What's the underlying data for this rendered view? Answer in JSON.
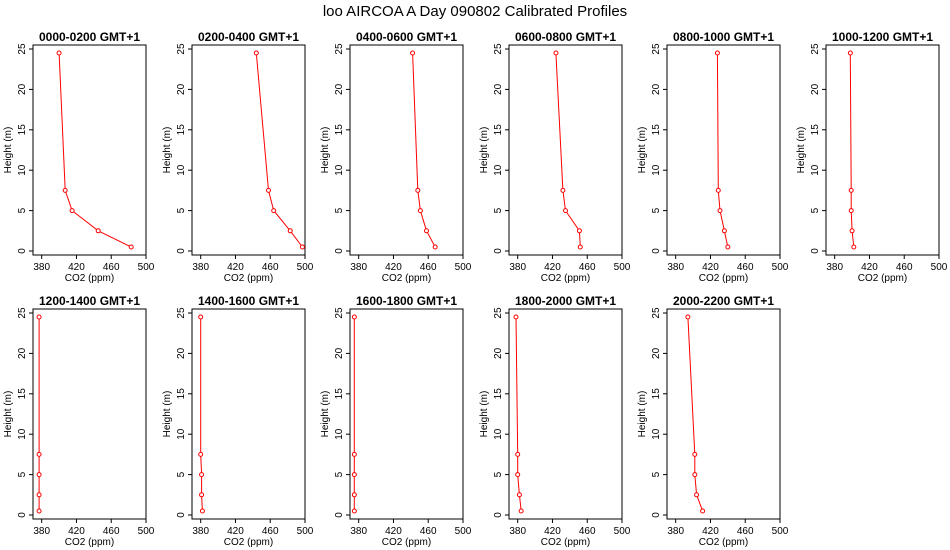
{
  "figure": {
    "title": "loo AIRCOA A  Day 090802  Calibrated Profiles",
    "colors": {
      "line": "#ff0000",
      "axis": "#000000",
      "background": "#ffffff"
    }
  },
  "chart_data": [
    {
      "type": "line",
      "title": "0000-0200 GMT+1",
      "xlabel": "CO2 (ppm)",
      "ylabel": "Height (m)",
      "xlim": [
        370,
        500
      ],
      "ylim": [
        0,
        25
      ],
      "x_ticks": [
        380,
        420,
        460,
        500
      ],
      "y_ticks": [
        0,
        5,
        10,
        15,
        20,
        25
      ],
      "x": [
        483,
        445,
        415,
        407,
        400
      ],
      "y": [
        0.5,
        2.5,
        5,
        7.5,
        24.5
      ]
    },
    {
      "type": "line",
      "title": "0200-0400 GMT+1",
      "xlabel": "CO2 (ppm)",
      "ylabel": "Height (m)",
      "xlim": [
        370,
        500
      ],
      "ylim": [
        0,
        25
      ],
      "x_ticks": [
        380,
        420,
        460,
        500
      ],
      "y_ticks": [
        0,
        5,
        10,
        15,
        20,
        25
      ],
      "x": [
        497,
        483,
        464,
        458,
        444
      ],
      "y": [
        0.5,
        2.5,
        5,
        7.5,
        24.5
      ]
    },
    {
      "type": "line",
      "title": "0400-0600 GMT+1",
      "xlabel": "CO2 (ppm)",
      "ylabel": "Height (m)",
      "xlim": [
        370,
        500
      ],
      "ylim": [
        0,
        25
      ],
      "x_ticks": [
        380,
        420,
        460,
        500
      ],
      "y_ticks": [
        0,
        5,
        10,
        15,
        20,
        25
      ],
      "x": [
        468,
        458,
        451,
        448,
        442
      ],
      "y": [
        0.5,
        2.5,
        5,
        7.5,
        24.5
      ]
    },
    {
      "type": "line",
      "title": "0600-0800 GMT+1",
      "xlabel": "CO2 (ppm)",
      "ylabel": "Height (m)",
      "xlim": [
        370,
        500
      ],
      "ylim": [
        0,
        25
      ],
      "x_ticks": [
        380,
        420,
        460,
        500
      ],
      "y_ticks": [
        0,
        5,
        10,
        15,
        20,
        25
      ],
      "x": [
        452,
        451,
        435,
        432,
        424
      ],
      "y": [
        0.5,
        2.5,
        5,
        7.5,
        24.5
      ]
    },
    {
      "type": "line",
      "title": "0800-1000 GMT+1",
      "xlabel": "CO2 (ppm)",
      "ylabel": "Height (m)",
      "xlim": [
        370,
        500
      ],
      "ylim": [
        0,
        25
      ],
      "x_ticks": [
        380,
        420,
        460,
        500
      ],
      "y_ticks": [
        0,
        5,
        10,
        15,
        20,
        25
      ],
      "x": [
        440,
        436,
        431,
        429,
        428
      ],
      "y": [
        0.5,
        2.5,
        5,
        7.5,
        24.5
      ]
    },
    {
      "type": "line",
      "title": "1000-1200 GMT+1",
      "xlabel": "CO2 (ppm)",
      "ylabel": "Height (m)",
      "xlim": [
        370,
        500
      ],
      "ylim": [
        0,
        25
      ],
      "x_ticks": [
        380,
        420,
        460,
        500
      ],
      "y_ticks": [
        0,
        5,
        10,
        15,
        20,
        25
      ],
      "x": [
        402,
        400,
        399,
        399,
        398
      ],
      "y": [
        0.5,
        2.5,
        5,
        7.5,
        24.5
      ]
    },
    {
      "type": "line",
      "title": "1200-1400 GMT+1",
      "xlabel": "CO2 (ppm)",
      "ylabel": "Height (m)",
      "xlim": [
        370,
        500
      ],
      "ylim": [
        0,
        25
      ],
      "x_ticks": [
        380,
        420,
        460,
        500
      ],
      "y_ticks": [
        0,
        5,
        10,
        15,
        20,
        25
      ],
      "x": [
        377,
        377,
        377,
        377,
        377
      ],
      "y": [
        0.5,
        2.5,
        5,
        7.5,
        24.5
      ]
    },
    {
      "type": "line",
      "title": "1400-1600 GMT+1",
      "xlabel": "CO2 (ppm)",
      "ylabel": "Height (m)",
      "xlim": [
        370,
        500
      ],
      "ylim": [
        0,
        25
      ],
      "x_ticks": [
        380,
        420,
        460,
        500
      ],
      "y_ticks": [
        0,
        5,
        10,
        15,
        20,
        25
      ],
      "x": [
        382,
        381,
        381,
        380,
        380
      ],
      "y": [
        0.5,
        2.5,
        5,
        7.5,
        24.5
      ]
    },
    {
      "type": "line",
      "title": "1600-1800 GMT+1",
      "xlabel": "CO2 (ppm)",
      "ylabel": "Height (m)",
      "xlim": [
        370,
        500
      ],
      "ylim": [
        0,
        25
      ],
      "x_ticks": [
        380,
        420,
        460,
        500
      ],
      "y_ticks": [
        0,
        5,
        10,
        15,
        20,
        25
      ],
      "x": [
        375,
        375,
        375,
        375,
        375
      ],
      "y": [
        0.5,
        2.5,
        5,
        7.5,
        24.5
      ]
    },
    {
      "type": "line",
      "title": "1800-2000 GMT+1",
      "xlabel": "CO2 (ppm)",
      "ylabel": "Height (m)",
      "xlim": [
        370,
        500
      ],
      "ylim": [
        0,
        25
      ],
      "x_ticks": [
        380,
        420,
        460,
        500
      ],
      "y_ticks": [
        0,
        5,
        10,
        15,
        20,
        25
      ],
      "x": [
        384,
        382,
        380,
        380,
        378
      ],
      "y": [
        0.5,
        2.5,
        5,
        7.5,
        24.5
      ]
    },
    {
      "type": "line",
      "title": "2000-2200 GMT+1",
      "xlabel": "CO2 (ppm)",
      "ylabel": "Height (m)",
      "xlim": [
        370,
        500
      ],
      "ylim": [
        0,
        25
      ],
      "x_ticks": [
        380,
        420,
        460,
        500
      ],
      "y_ticks": [
        0,
        5,
        10,
        15,
        20,
        25
      ],
      "x": [
        411,
        404,
        402,
        402,
        394
      ],
      "y": [
        0.5,
        2.5,
        5,
        7.5,
        24.5
      ]
    }
  ]
}
